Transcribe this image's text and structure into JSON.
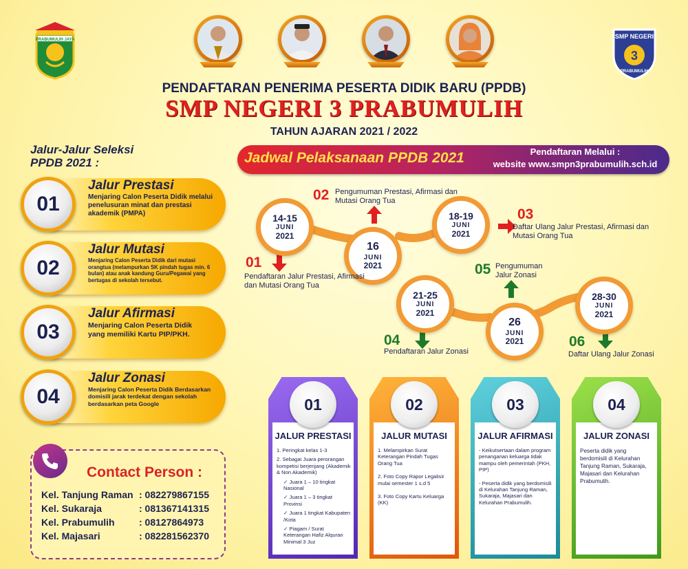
{
  "header": {
    "logo_left_text": "PRABUMULIH JAYA",
    "logo_right_top": "SMP NEGERI",
    "logo_right_num": "3",
    "logo_right_bottom": "PRABUMULIH",
    "line1": "PENDAFTARAN PENERIMA PESERTA DIDIK BARU (PPDB)",
    "line2": "SMP NEGERI 3 PRABUMULIH",
    "line3": "TAHUN AJARAN 2021 / 2022"
  },
  "jalur_heading": [
    "Jalur-Jalur Seleksi",
    "PPDB 2021 :"
  ],
  "jalur": [
    {
      "num": "01",
      "title": "Jalur Prestasi",
      "desc": "Menjaring Calon Peserta Didik melalui penelusuran minat dan prestasi akademik (PMPA)"
    },
    {
      "num": "02",
      "title": "Jalur Mutasi",
      "desc": "Menjaring Calon Peserta Didik dari mutasi orangtua (melampurkan SK pindah tugas min. 6 bulan) atau anak kandung Guru/Pegawai yang bertugas di sekolah tersebut."
    },
    {
      "num": "03",
      "title": "Jalur Afirmasi",
      "desc": "Menjaring Calon Peserta Didik yang memiliki Kartu PIP/PKH."
    },
    {
      "num": "04",
      "title": "Jalur Zonasi",
      "desc": "Menjaring Calon Peserta Didik Berdasarkan domisili jarak terdekat dengan sekolah berdasarkan peta Google"
    }
  ],
  "contact": {
    "title": "Contact Person :",
    "rows": [
      {
        "name": "Kel. Tanjung Raman",
        "phone": ": 082279867155"
      },
      {
        "name": "Kel. Sukaraja",
        "phone": ": 081367141315"
      },
      {
        "name": "Kel. Prabumulih",
        "phone": ": 08127864973"
      },
      {
        "name": "Kel. Majasari",
        "phone": ": 082281562370"
      }
    ]
  },
  "banner": {
    "title": "Jadwal Pelaksanaan PPDB 2021",
    "right1": "Pendaftaran Melalui :",
    "right2": "website www.smpn3prabumulih.sch.id"
  },
  "timeline": {
    "dates": [
      {
        "d": "14-15",
        "m": "JUNI",
        "y": "2021"
      },
      {
        "d": "16",
        "m": "JUNI",
        "y": "2021"
      },
      {
        "d": "18-19",
        "m": "JUNI",
        "y": "2021"
      },
      {
        "d": "21-25",
        "m": "JUNI",
        "y": "2021"
      },
      {
        "d": "26",
        "m": "JUNI",
        "y": "2021"
      },
      {
        "d": "28-30",
        "m": "JUNI",
        "y": "2021"
      }
    ],
    "steps": [
      {
        "num": "01",
        "text": "Pendaftaran Jalur Prestasi, Afirmasi dan Mutasi Orang Tua",
        "color": "#e0201f"
      },
      {
        "num": "02",
        "text": "Pengumuman Prestasi, Afirmasi dan Mutasi Orang Tua",
        "color": "#e0201f"
      },
      {
        "num": "03",
        "text": "Daftar Ulang Jalur Prestasi, Afirmasi dan Mutasi Orang Tua",
        "color": "#e0201f"
      },
      {
        "num": "04",
        "text": "Pendaftaran Jalur Zonasi",
        "color": "#1e7a2a"
      },
      {
        "num": "05",
        "text": "Pengumuman Jalur Zonasi",
        "color": "#1e7a2a"
      },
      {
        "num": "06",
        "text": "Daftar Ulang Jalur Zonasi",
        "color": "#1e7a2a"
      }
    ]
  },
  "cards": [
    {
      "num": "01",
      "title": "JALUR PRESTASI",
      "color": "#6a3bd1",
      "items": [
        "1. Peringkat kelas 1-3",
        "2. Sebagai Juara perorangan kompetisi berjenjang (Akademik & Non Akademik)",
        "✓ Juara 1 – 10 tingkat Nasional",
        "✓ Juara 1 – 3 tingkat Provinsi",
        "✓ Juara 1 tingkat Kabupaten /Kota",
        "✓ Piagam / Surat Keterangan Hafiz Alquran Minimal 3 Juz"
      ]
    },
    {
      "num": "02",
      "title": "JALUR MUTASI",
      "color": "#f07a14",
      "items": [
        "1. Melampirkan Surat Keterangan Pindah Tugas Orang Tua",
        "2. Foto Copy Rapor Legalisir mulai semester 1 s.d 5",
        "3. Foto Copy Kartu Keluarga (KK)"
      ]
    },
    {
      "num": "03",
      "title": "JALUR AFIRMASI",
      "color": "#2aa6b7",
      "items": [
        "- Keikutsertaan dalam program penanganan keluarga tidak mampu oleh pemerintah (PKH, PIP)",
        "- Peserta didik yang berdomisili di Kelurahan Tanjung Raman, Sukaraja, Majasari dan Kelurahan Prabumulih."
      ]
    },
    {
      "num": "04",
      "title": "JALUR ZONASI",
      "color": "#6cbf2c",
      "items": [
        "Peserta didik yang berdomisili di Kelurahan Tanjung Raman, Sukaraja, Majasari dan Kelurahan Prabumulih."
      ]
    }
  ]
}
